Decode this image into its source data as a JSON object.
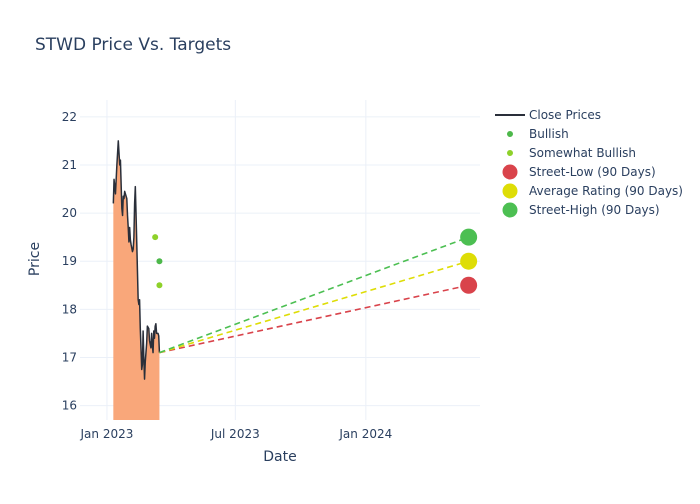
{
  "chart_data": {
    "type": "line",
    "title": "STWD Price Vs. Targets",
    "xlabel": "Date",
    "ylabel": "Price",
    "xlim": [
      "2022-11-24",
      "2024-06-10"
    ],
    "ylim": [
      15.7,
      22.35
    ],
    "grid": true,
    "legend_position": "top-right",
    "x_ticks": [
      {
        "date": "2023-01-01",
        "label": "Jan 2023"
      },
      {
        "date": "2023-07-01",
        "label": "Jul 2023"
      },
      {
        "date": "2024-01-01",
        "label": "Jan 2024"
      }
    ],
    "y_ticks": [
      16,
      17,
      18,
      19,
      20,
      21,
      22
    ],
    "fill_base": 15.7,
    "series": [
      {
        "name": "Close Prices",
        "kind": "line",
        "color": "#2a2f3a",
        "fill_color": "#f9a77a",
        "points": [
          [
            "2023-01-10",
            20.2
          ],
          [
            "2023-01-11",
            20.7
          ],
          [
            "2023-01-13",
            20.4
          ],
          [
            "2023-01-15",
            21.0
          ],
          [
            "2023-01-17",
            21.5
          ],
          [
            "2023-01-19",
            21.0
          ],
          [
            "2023-01-20",
            21.1
          ],
          [
            "2023-01-22",
            20.1
          ],
          [
            "2023-01-23",
            19.95
          ],
          [
            "2023-01-24",
            20.35
          ],
          [
            "2023-01-25",
            20.3
          ],
          [
            "2023-01-26",
            20.45
          ],
          [
            "2023-01-27",
            20.4
          ],
          [
            "2023-01-29",
            20.3
          ],
          [
            "2023-01-30",
            19.95
          ],
          [
            "2023-01-31",
            19.7
          ],
          [
            "2023-02-01",
            19.4
          ],
          [
            "2023-02-02",
            19.7
          ],
          [
            "2023-02-03",
            19.45
          ],
          [
            "2023-02-04",
            19.35
          ],
          [
            "2023-02-06",
            19.2
          ],
          [
            "2023-02-07",
            19.25
          ],
          [
            "2023-02-08",
            19.5
          ],
          [
            "2023-02-09",
            20.2
          ],
          [
            "2023-02-10",
            20.55
          ],
          [
            "2023-02-11",
            20.0
          ],
          [
            "2023-02-12",
            19.4
          ],
          [
            "2023-02-13",
            18.8
          ],
          [
            "2023-02-14",
            18.2
          ],
          [
            "2023-02-15",
            18.1
          ],
          [
            "2023-02-16",
            18.2
          ],
          [
            "2023-02-17",
            17.6
          ],
          [
            "2023-02-18",
            17.2
          ],
          [
            "2023-02-19",
            16.75
          ],
          [
            "2023-02-20",
            16.85
          ],
          [
            "2023-02-21",
            17.55
          ],
          [
            "2023-02-22",
            17.0
          ],
          [
            "2023-02-23",
            16.55
          ],
          [
            "2023-02-24",
            16.9
          ],
          [
            "2023-02-25",
            17.1
          ],
          [
            "2023-02-26",
            17.3
          ],
          [
            "2023-02-27",
            17.65
          ],
          [
            "2023-03-01",
            17.6
          ],
          [
            "2023-03-02",
            17.35
          ],
          [
            "2023-03-04",
            17.2
          ],
          [
            "2023-03-05",
            17.5
          ],
          [
            "2023-03-06",
            17.25
          ],
          [
            "2023-03-07",
            17.1
          ],
          [
            "2023-03-08",
            17.55
          ],
          [
            "2023-03-09",
            17.4
          ],
          [
            "2023-03-10",
            17.65
          ],
          [
            "2023-03-11",
            17.7
          ],
          [
            "2023-03-12",
            17.5
          ],
          [
            "2023-03-14",
            17.5
          ],
          [
            "2023-03-15",
            17.45
          ],
          [
            "2023-03-16",
            17.1
          ]
        ]
      },
      {
        "name": "Bullish",
        "kind": "markers",
        "color": "#4db84a",
        "size": 5,
        "points": [
          [
            "2023-03-16",
            19.0
          ]
        ]
      },
      {
        "name": "Somewhat Bullish",
        "kind": "markers",
        "color": "#8ed12a",
        "size": 5,
        "points": [
          [
            "2023-03-10",
            19.5
          ],
          [
            "2023-03-16",
            18.5
          ]
        ]
      },
      {
        "name": "Street-Low (90 Days)",
        "kind": "target",
        "color": "#d9434b",
        "size": 17,
        "from": [
          "2023-03-16",
          17.1
        ],
        "to": [
          "2024-05-25",
          18.5
        ]
      },
      {
        "name": "Average Rating (90 Days)",
        "kind": "target",
        "color": "#dedd06",
        "size": 17,
        "from": [
          "2023-03-16",
          17.1
        ],
        "to": [
          "2024-05-25",
          19.0
        ]
      },
      {
        "name": "Street-High (90 Days)",
        "kind": "target",
        "color": "#4cbf52",
        "size": 17,
        "from": [
          "2023-03-16",
          17.1
        ],
        "to": [
          "2024-05-25",
          19.5
        ]
      }
    ]
  }
}
